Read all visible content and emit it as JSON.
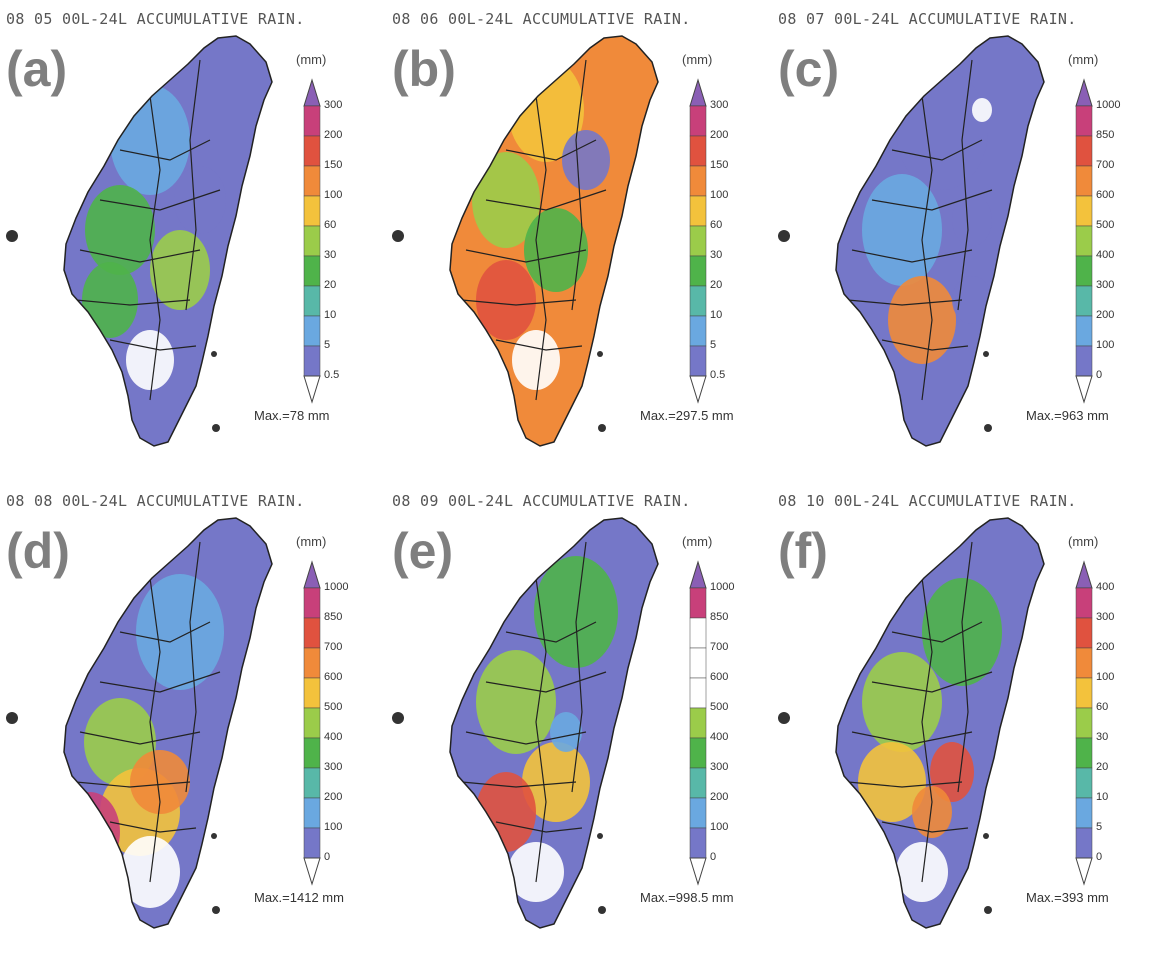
{
  "panels": [
    {
      "id": "a",
      "label": "(a)",
      "title": "08 05 00L-24L ACCUMULATIVE RAIN.",
      "unit": "(mm)",
      "ticks": [
        "300",
        "200",
        "150",
        "100",
        "60",
        "30",
        "20",
        "10",
        "5",
        "0.5"
      ],
      "cb_colors": [
        "#8a5fb5",
        "#c8407a",
        "#e0523f",
        "#f08a3a",
        "#f3c23c",
        "#9bcc4a",
        "#4fb34a",
        "#58b8a8",
        "#6aa8e0",
        "#7577c8"
      ],
      "max": "Max.=78 mm",
      "map_palette": [
        "#7577c8",
        "#6aa8e0",
        "#4fb34a",
        "#9bcc4a",
        "#4fb34a",
        "#7577c8",
        "#ffffff"
      ]
    },
    {
      "id": "b",
      "label": "(b)",
      "title": "08 06 00L-24L ACCUMULATIVE RAIN.",
      "unit": "(mm)",
      "ticks": [
        "300",
        "200",
        "150",
        "100",
        "60",
        "30",
        "20",
        "10",
        "5",
        "0.5"
      ],
      "cb_colors": [
        "#8a5fb5",
        "#c8407a",
        "#e0523f",
        "#f08a3a",
        "#f3c23c",
        "#9bcc4a",
        "#4fb34a",
        "#58b8a8",
        "#6aa8e0",
        "#7577c8"
      ],
      "max": "Max.=297.5 mm",
      "map_palette": [
        "#f08a3a",
        "#f3c23c",
        "#9bcc4a",
        "#4fb34a",
        "#e0523f",
        "#7577c8",
        "#ffffff"
      ]
    },
    {
      "id": "c",
      "label": "(c)",
      "title": "08 07 00L-24L ACCUMULATIVE RAIN.",
      "unit": "(mm)",
      "ticks": [
        "1000",
        "850",
        "700",
        "600",
        "500",
        "400",
        "300",
        "200",
        "100",
        "0"
      ],
      "cb_colors": [
        "#8a5fb5",
        "#c8407a",
        "#e0523f",
        "#f08a3a",
        "#f3c23c",
        "#9bcc4a",
        "#4fb34a",
        "#58b8a8",
        "#6aa8e0",
        "#7577c8"
      ],
      "max": "Max.=963 mm",
      "map_palette": [
        "#7577c8",
        "#7577c8",
        "#6aa8e0",
        "#7577c8",
        "#f08a3a",
        "#ffffff",
        "#7577c8"
      ]
    },
    {
      "id": "d",
      "label": "(d)",
      "title": "08 08 00L-24L ACCUMULATIVE RAIN.",
      "unit": "(mm)",
      "ticks": [
        "1000",
        "850",
        "700",
        "600",
        "500",
        "400",
        "300",
        "200",
        "100",
        "0"
      ],
      "cb_colors": [
        "#8a5fb5",
        "#c8407a",
        "#e0523f",
        "#f08a3a",
        "#f3c23c",
        "#9bcc4a",
        "#4fb34a",
        "#58b8a8",
        "#6aa8e0",
        "#7577c8"
      ],
      "max": "Max.=1412 mm",
      "map_palette": [
        "#7577c8",
        "#6aa8e0",
        "#9bcc4a",
        "#f3c23c",
        "#c8407a",
        "#f08a3a",
        "#ffffff"
      ]
    },
    {
      "id": "e",
      "label": "(e)",
      "title": "08 09 00L-24L ACCUMULATIVE RAIN.",
      "unit": "(mm)",
      "ticks": [
        "1000",
        "850",
        "700",
        "600",
        "500",
        "400",
        "300",
        "200",
        "100",
        "0"
      ],
      "cb_colors": [
        "#8a5fb5",
        "#c8407a",
        "#ffffff",
        "#ffffff",
        "#ffffff",
        "#9bcc4a",
        "#4fb34a",
        "#58b8a8",
        "#6aa8e0",
        "#7577c8"
      ],
      "max": "Max.=998.5 mm",
      "map_palette": [
        "#7577c8",
        "#4fb34a",
        "#9bcc4a",
        "#f3c23c",
        "#e0523f",
        "#6aa8e0",
        "#ffffff"
      ]
    },
    {
      "id": "f",
      "label": "(f)",
      "title": "08 10 00L-24L ACCUMULATIVE RAIN.",
      "unit": "(mm)",
      "ticks": [
        "400",
        "300",
        "200",
        "100",
        "60",
        "30",
        "20",
        "10",
        "5",
        "0"
      ],
      "cb_colors": [
        "#8a5fb5",
        "#c8407a",
        "#e0523f",
        "#f08a3a",
        "#f3c23c",
        "#9bcc4a",
        "#4fb34a",
        "#58b8a8",
        "#6aa8e0",
        "#7577c8"
      ],
      "max": "Max.=393 mm",
      "map_palette": [
        "#7577c8",
        "#4fb34a",
        "#9bcc4a",
        "#f3c23c",
        "#e0523f",
        "#f08a3a",
        "#ffffff"
      ]
    }
  ]
}
